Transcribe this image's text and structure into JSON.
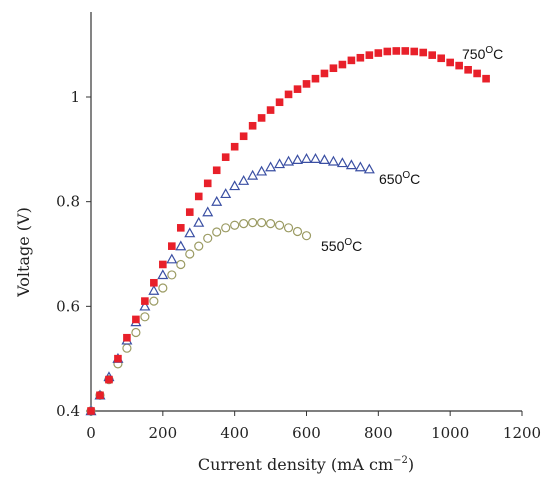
{
  "chart_data": {
    "type": "scatter",
    "title": "",
    "xlabel": "Current density (mA cm−2)",
    "xlabel_main": "Current density (mA cm",
    "xlabel_sup": "−2",
    "xlabel_close": ")",
    "ylabel": "Voltage (V)",
    "xlim": [
      0,
      1200
    ],
    "ylim": [
      0.4,
      1.15
    ],
    "xticks": [
      0,
      200,
      400,
      600,
      800,
      1000,
      1200
    ],
    "xtick_labels": [
      "0",
      "200",
      "400",
      "600",
      "800",
      "1000",
      "1200"
    ],
    "yticks": [
      0.4,
      0.6,
      0.8,
      1.0
    ],
    "ytick_labels": [
      "0.4",
      "0.6",
      "0.8",
      "1"
    ],
    "grid": false,
    "series": [
      {
        "name": "750°C",
        "label_main": "750",
        "label_sup": "O",
        "label_unit": "C",
        "color": "#e8202a",
        "marker": "square",
        "x": [
          0,
          25,
          50,
          75,
          100,
          125,
          150,
          175,
          200,
          225,
          250,
          275,
          300,
          325,
          350,
          375,
          400,
          425,
          450,
          475,
          500,
          525,
          550,
          575,
          600,
          625,
          650,
          675,
          700,
          725,
          750,
          775,
          800,
          825,
          850,
          875,
          900,
          925,
          950,
          975,
          1000,
          1025,
          1050,
          1075,
          1100
        ],
        "y": [
          0.4,
          0.43,
          0.46,
          0.5,
          0.54,
          0.575,
          0.61,
          0.645,
          0.68,
          0.715,
          0.75,
          0.78,
          0.81,
          0.835,
          0.86,
          0.885,
          0.905,
          0.925,
          0.945,
          0.96,
          0.975,
          0.99,
          1.005,
          1.015,
          1.025,
          1.035,
          1.045,
          1.055,
          1.062,
          1.07,
          1.075,
          1.08,
          1.084,
          1.087,
          1.088,
          1.088,
          1.087,
          1.085,
          1.08,
          1.074,
          1.066,
          1.06,
          1.052,
          1.045,
          1.035
        ]
      },
      {
        "name": "650°C",
        "label_main": "650",
        "label_sup": "O",
        "label_unit": "C",
        "color": "#3a4fa3",
        "marker": "triangle",
        "x": [
          0,
          25,
          50,
          75,
          100,
          125,
          150,
          175,
          200,
          225,
          250,
          275,
          300,
          325,
          350,
          375,
          400,
          425,
          450,
          475,
          500,
          525,
          550,
          575,
          600,
          625,
          650,
          675,
          700,
          725,
          750,
          775
        ],
        "y": [
          0.4,
          0.43,
          0.465,
          0.5,
          0.535,
          0.57,
          0.6,
          0.63,
          0.66,
          0.69,
          0.715,
          0.74,
          0.76,
          0.78,
          0.8,
          0.815,
          0.83,
          0.84,
          0.85,
          0.858,
          0.866,
          0.872,
          0.877,
          0.88,
          0.882,
          0.882,
          0.88,
          0.877,
          0.874,
          0.87,
          0.866,
          0.862
        ]
      },
      {
        "name": "550°C",
        "label_main": "550",
        "label_sup": "O",
        "label_unit": "C",
        "color": "#9b9b63",
        "marker": "circle",
        "x": [
          0,
          25,
          50,
          75,
          100,
          125,
          150,
          175,
          200,
          225,
          250,
          275,
          300,
          325,
          350,
          375,
          400,
          425,
          450,
          475,
          500,
          525,
          550,
          575,
          600
        ],
        "y": [
          0.4,
          0.43,
          0.46,
          0.49,
          0.52,
          0.55,
          0.58,
          0.61,
          0.635,
          0.66,
          0.68,
          0.7,
          0.715,
          0.73,
          0.742,
          0.75,
          0.755,
          0.758,
          0.76,
          0.76,
          0.758,
          0.755,
          0.75,
          0.743,
          0.735
        ]
      }
    ]
  }
}
